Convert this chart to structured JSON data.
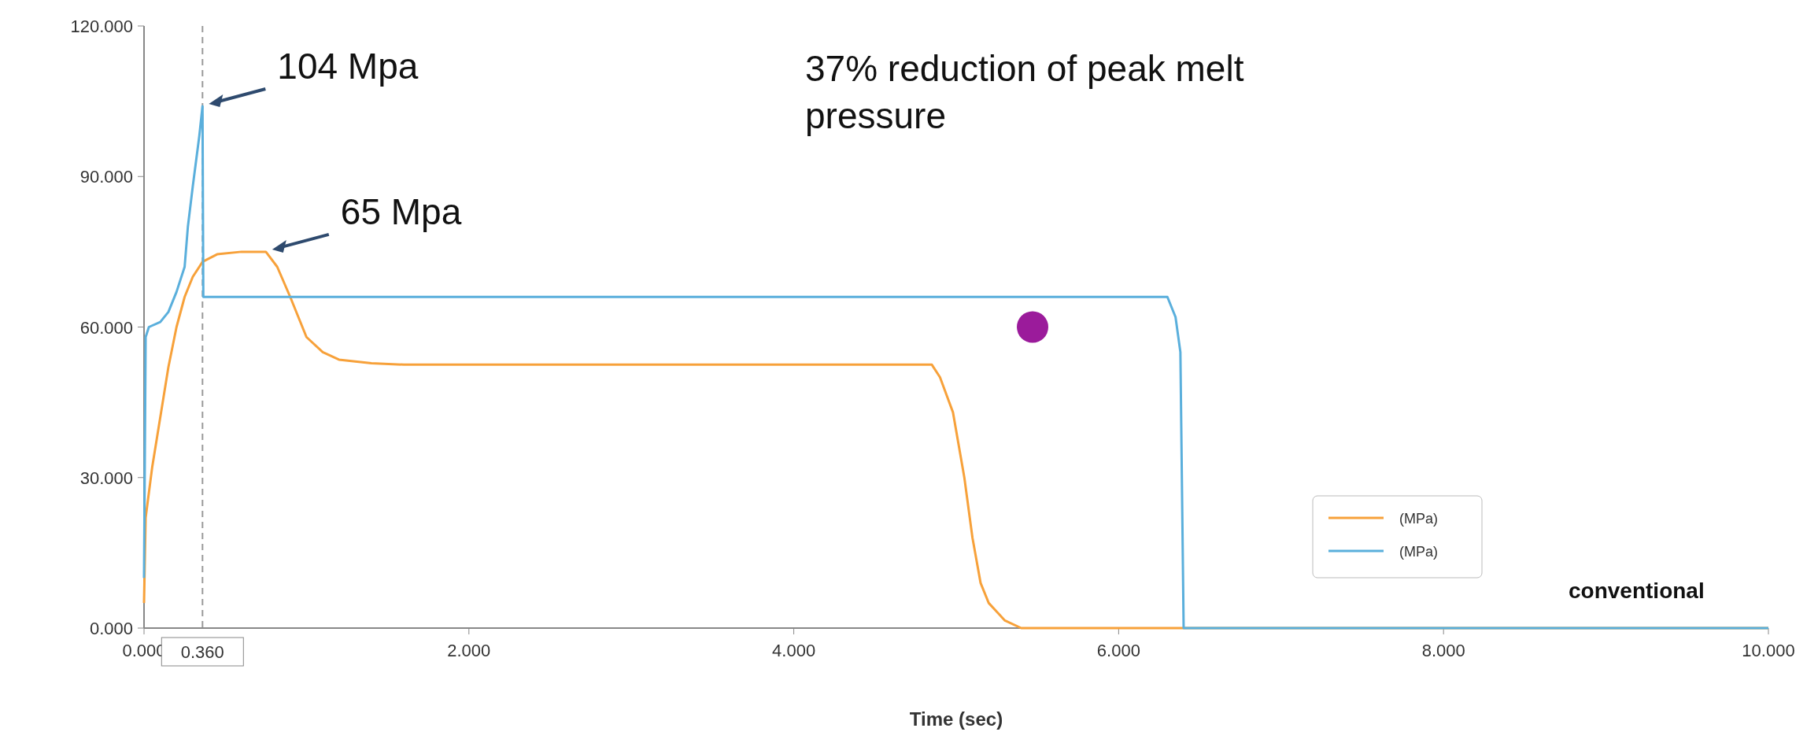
{
  "chart_data": {
    "type": "line",
    "xlabel": "Time (sec)",
    "xlim": [
      0,
      10
    ],
    "xticks": [
      {
        "value": 0,
        "label": "0.000"
      },
      {
        "value": 2,
        "label": "2.000"
      },
      {
        "value": 4,
        "label": "4.000"
      },
      {
        "value": 6,
        "label": "6.000"
      },
      {
        "value": 8,
        "label": "8.000"
      },
      {
        "value": 10,
        "label": "10.000"
      }
    ],
    "ylim": [
      0,
      120
    ],
    "yticks": [
      {
        "value": 0,
        "label": "0.000"
      },
      {
        "value": 30,
        "label": "30.000"
      },
      {
        "value": 60,
        "label": "60.000"
      },
      {
        "value": 90,
        "label": "90.000"
      },
      {
        "value": 120,
        "label": "120.000"
      }
    ],
    "grid": false,
    "legend": "bottom right",
    "line_style": "solid",
    "ref_lines": [
      {
        "axis": "x",
        "value": 0.36,
        "label": "0.360",
        "color": "#999999",
        "line_style": "dashed"
      }
    ],
    "annotations": [
      {
        "text": "104 Mpa",
        "x": 0.36,
        "y": 104
      },
      {
        "text": "65 Mpa",
        "x": 0.75,
        "y": 75
      },
      "37% reduction of peak melt pressure",
      "conventional"
    ],
    "series": [
      {
        "name": "(MPa)",
        "color": "#f7a13a",
        "x": [
          0,
          0.01,
          0.05,
          0.1,
          0.15,
          0.2,
          0.25,
          0.3,
          0.36,
          0.45,
          0.6,
          0.75,
          0.82,
          0.9,
          0.95,
          1.0,
          1.1,
          1.2,
          1.4,
          1.6,
          4.85,
          4.9,
          4.98,
          5.05,
          5.1,
          5.15,
          5.2,
          5.3,
          5.4,
          10
        ],
        "values": [
          5,
          22,
          32,
          42,
          52,
          60,
          66,
          70,
          73,
          74.5,
          75,
          75,
          72,
          66,
          62,
          58,
          55,
          53.5,
          52.8,
          52.5,
          52.5,
          50,
          43,
          30,
          18,
          9,
          5,
          1.5,
          0,
          0
        ]
      },
      {
        "name": "(MPa)",
        "color": "#5aafdc",
        "x": [
          0,
          0.01,
          0.03,
          0.1,
          0.15,
          0.2,
          0.25,
          0.27,
          0.3,
          0.34,
          0.36,
          0.365,
          6.3,
          6.35,
          6.38,
          6.4,
          10
        ],
        "values": [
          10,
          58,
          60,
          61,
          63,
          67,
          72,
          80,
          88,
          98,
          104,
          66,
          66,
          62,
          55,
          0,
          0
        ]
      },
      {
        "type": "scatter",
        "marker": "circle",
        "color": "#9b1b9b",
        "x": [
          5.47
        ],
        "values": [
          60
        ]
      }
    ]
  }
}
